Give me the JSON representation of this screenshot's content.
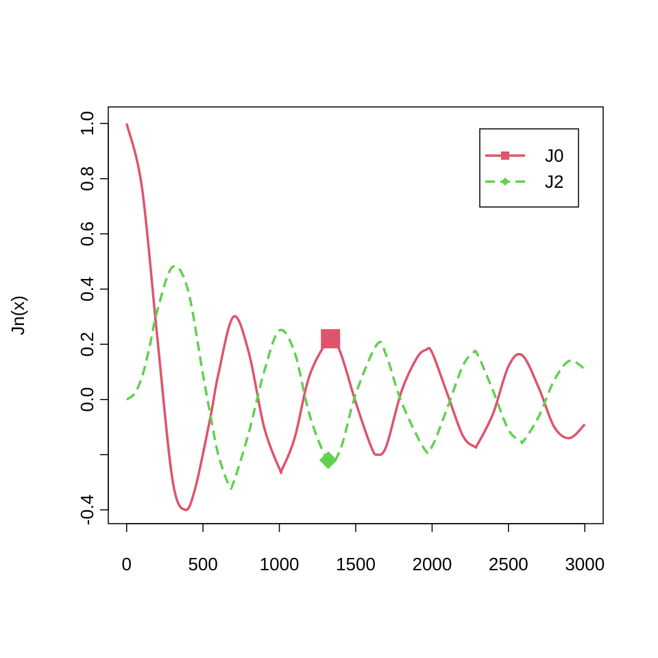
{
  "chart_data": {
    "type": "line",
    "title": "",
    "xlabel": "",
    "ylabel": "Jn(x)",
    "xlim": [
      -120,
      3120
    ],
    "ylim": [
      -0.45,
      1.06
    ],
    "x_ticks": [
      0,
      500,
      1000,
      1500,
      2000,
      2500,
      3000
    ],
    "x_tick_labels": [
      "0",
      "500",
      "1000",
      "1500",
      "2000",
      "2500",
      "3000"
    ],
    "y_ticks": [
      -0.4,
      -0.2,
      0.0,
      0.2,
      0.4,
      0.6,
      0.8,
      1.0
    ],
    "y_tick_labels": [
      "-0.4",
      "",
      "0.0",
      "0.2",
      "0.4",
      "0.6",
      "0.8",
      "1.0"
    ],
    "grid": false,
    "legend": {
      "position": "top-right",
      "entries": [
        {
          "label": "J0",
          "color": "#DF536B",
          "dash": "solid",
          "marker": "square"
        },
        {
          "label": "J2",
          "color": "#61D04F",
          "dash": "dashed",
          "marker": "diamond"
        }
      ]
    },
    "series": [
      {
        "name": "J0",
        "color": "#DF536B",
        "dash": "solid",
        "x": [
          0,
          100,
          200,
          300,
          383,
          450,
          550,
          600,
          700,
          800,
          900,
          1000,
          1020,
          1100,
          1200,
          1335,
          1400,
          1500,
          1600,
          1640,
          1700,
          1800,
          1900,
          1960,
          2000,
          2100,
          2200,
          2275,
          2300,
          2400,
          2500,
          2590,
          2700,
          2800,
          2900,
          3000
        ],
        "y": [
          1.0,
          0.77,
          0.23,
          -0.29,
          -0.4,
          -0.32,
          -0.06,
          0.09,
          0.3,
          0.17,
          -0.1,
          -0.25,
          -0.25,
          -0.14,
          0.09,
          0.22,
          0.17,
          -0.01,
          -0.17,
          -0.2,
          -0.17,
          0.03,
          0.15,
          0.18,
          0.17,
          0.02,
          -0.13,
          -0.17,
          -0.16,
          -0.05,
          0.12,
          0.16,
          0.04,
          -0.1,
          -0.14,
          -0.09
        ]
      },
      {
        "name": "J2",
        "color": "#61D04F",
        "dash": "dashed",
        "x": [
          0,
          50,
          100,
          150,
          200,
          300,
          400,
          500,
          550,
          600,
          670,
          700,
          800,
          900,
          1000,
          1100,
          1200,
          1320,
          1400,
          1500,
          1640,
          1700,
          1800,
          1950,
          2000,
          2100,
          2200,
          2270,
          2300,
          2400,
          2500,
          2580,
          2600,
          2700,
          2800,
          2900,
          3000
        ],
        "y": [
          0.0,
          0.02,
          0.08,
          0.19,
          0.32,
          0.48,
          0.4,
          0.09,
          -0.06,
          -0.2,
          -0.31,
          -0.3,
          -0.12,
          0.1,
          0.25,
          0.17,
          -0.06,
          -0.22,
          -0.18,
          0.02,
          0.2,
          0.16,
          -0.01,
          -0.18,
          -0.17,
          -0.03,
          0.12,
          0.17,
          0.16,
          0.03,
          -0.11,
          -0.15,
          -0.15,
          -0.06,
          0.07,
          0.14,
          0.11
        ]
      }
    ],
    "highlights": [
      {
        "series": "J0",
        "marker": "square",
        "x": 1335,
        "y": 0.22,
        "color": "#DF536B"
      },
      {
        "series": "J2",
        "marker": "diamond",
        "x": 1320,
        "y": -0.22,
        "color": "#61D04F"
      }
    ]
  }
}
